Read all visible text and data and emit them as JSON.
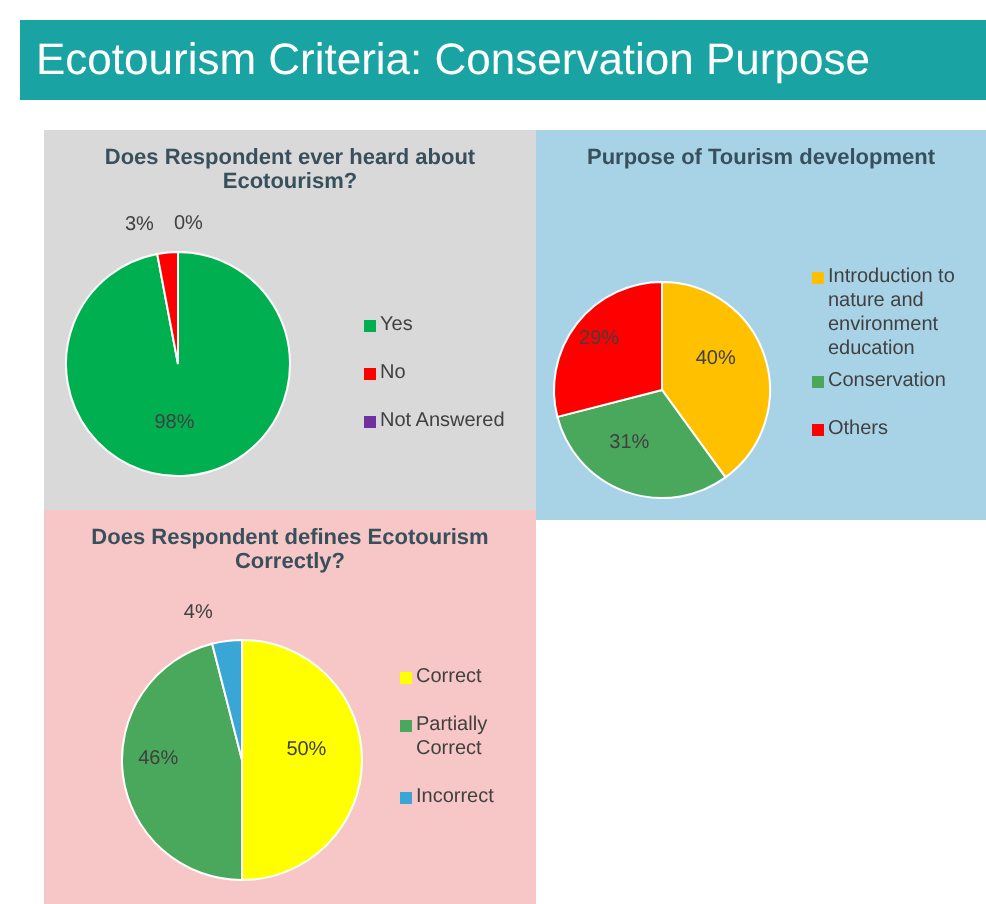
{
  "chart_data": [
    {
      "type": "other",
      "title": "Ecotourism Criteria: Conservation Purpose"
    },
    {
      "type": "pie",
      "title": "Does Respondent ever heard about Ecotourism?",
      "categories": [
        "Yes",
        "No",
        "Not Answered"
      ],
      "values": [
        98,
        3,
        0
      ],
      "value_labels": [
        "98%",
        "3%",
        "0%"
      ],
      "colors": [
        "#00b050",
        "#ff0000",
        "#7030a0"
      ],
      "legend": "right"
    },
    {
      "type": "pie",
      "title": "Purpose of Tourism development",
      "categories": [
        "Introduction to nature and environment education",
        "Conservation",
        "Others"
      ],
      "values": [
        40,
        31,
        29
      ],
      "value_labels": [
        "40%",
        "31%",
        "29%"
      ],
      "colors": [
        "#ffc000",
        "#4aa85c",
        "#ff0000"
      ],
      "legend": "right"
    },
    {
      "type": "pie",
      "title": "Does Respondent defines Ecotourism Correctly?",
      "categories": [
        "Correct",
        "Partially Correct",
        "Incorrect"
      ],
      "values": [
        50,
        46,
        4
      ],
      "value_labels": [
        "50%",
        "46%",
        "4%"
      ],
      "colors": [
        "#ffff00",
        "#4aa85c",
        "#3aa6d6"
      ],
      "legend": "right"
    }
  ]
}
